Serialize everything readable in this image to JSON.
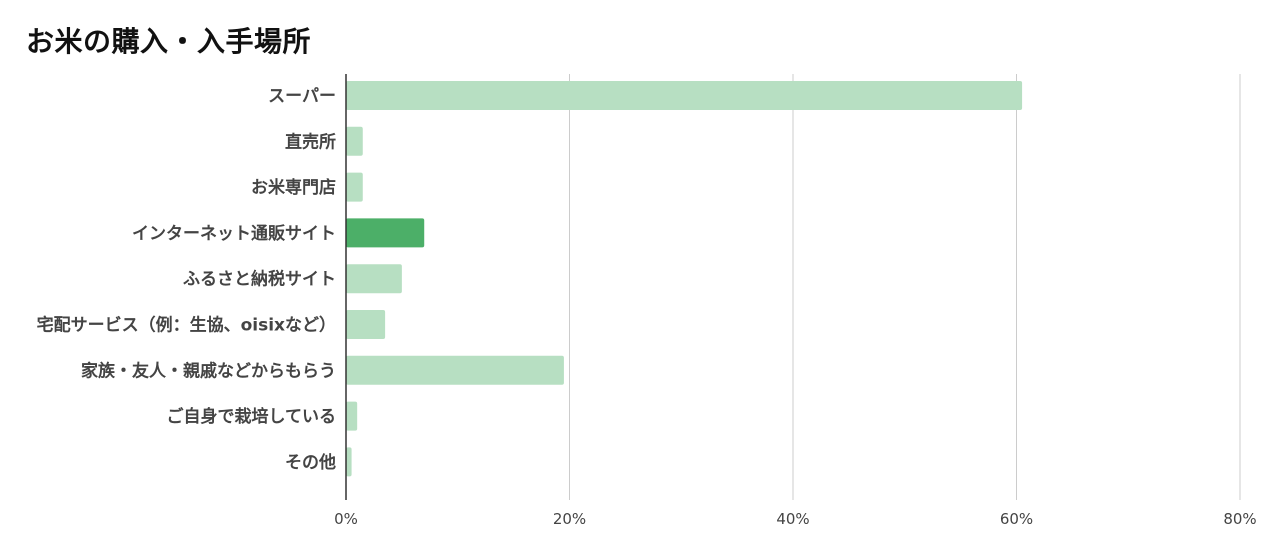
{
  "chart_data": {
    "type": "bar",
    "orientation": "horizontal",
    "title": "お米の購入・入手場所",
    "categories": [
      "スーパー",
      "直売所",
      "お米専門店",
      "インターネット通販サイト",
      "ふるさと納税サイト",
      "宅配サービス（例：生協、oisixなど）",
      "家族・友人・親戚などからもらう",
      "ご自身で栽培している",
      "その他"
    ],
    "values": [
      60.5,
      1.5,
      1.5,
      7.0,
      5.0,
      3.5,
      19.5,
      1.0,
      0.5
    ],
    "highlight_index": 3,
    "xlim": [
      0,
      80
    ],
    "xticks": [
      "0%",
      "20%",
      "40%",
      "60%",
      "80%"
    ],
    "xtick_values": [
      0,
      20,
      40,
      60,
      80
    ],
    "grid": true,
    "colors": {
      "bar": "#b7dfc2",
      "highlight": "#4caf68",
      "grid": "#cccccc",
      "axis": "#333333"
    }
  }
}
